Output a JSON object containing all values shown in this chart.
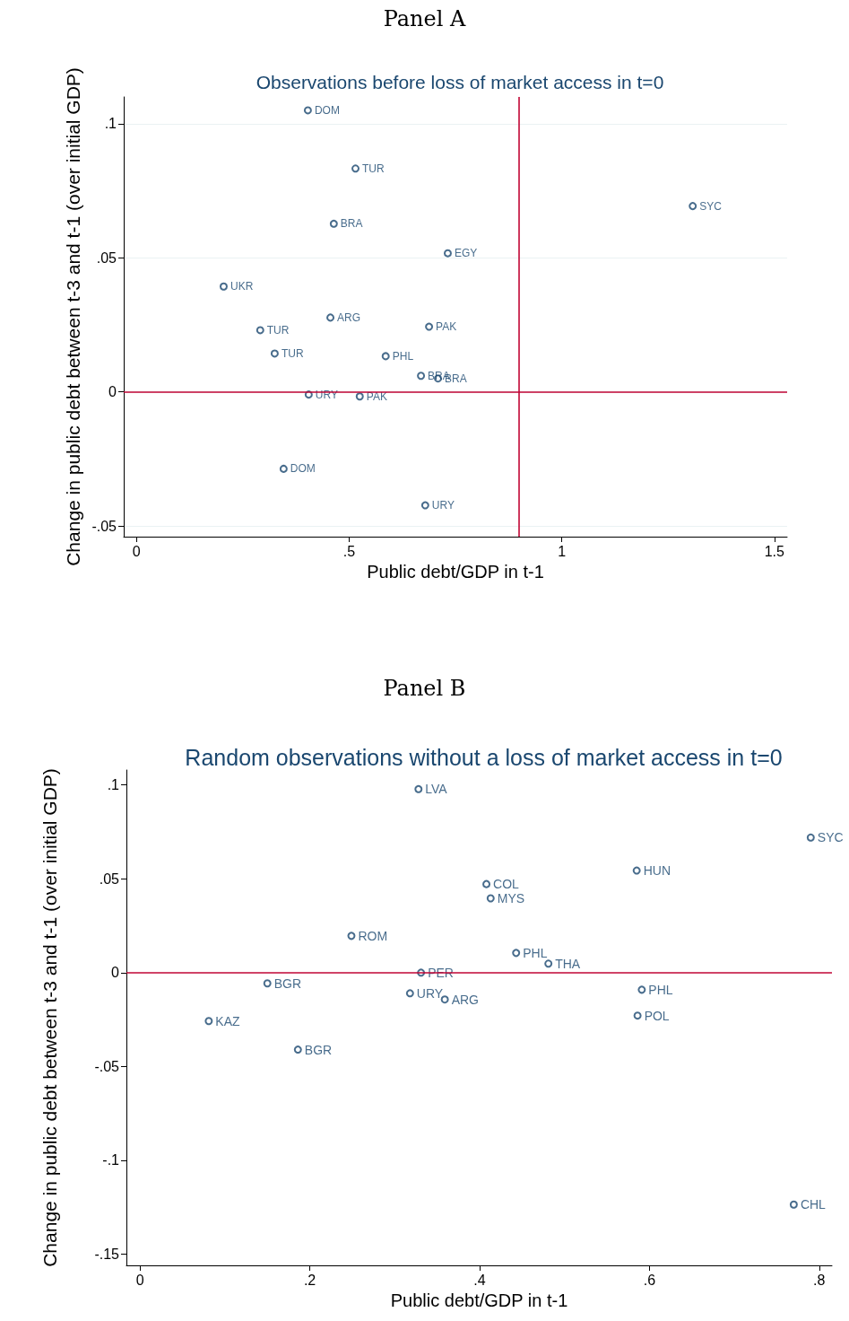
{
  "chart_data": [
    {
      "type": "scatter",
      "title": "Panel A",
      "subtitle": "Observations before loss of market access in t=0",
      "xlabel": "Public debt/GDP in t-1",
      "ylabel": "Change in public debt between t-3 and t-1 (over initial GDP)",
      "x": [
        0.403,
        0.515,
        1.308,
        0.464,
        0.732,
        0.205,
        0.456,
        0.291,
        0.688,
        0.325,
        0.586,
        0.669,
        0.709,
        0.405,
        0.525,
        0.346,
        0.679
      ],
      "series": [
        {
          "color": "#1a476f",
          "values": [
            0.105,
            0.0833,
            0.0693,
            0.0627,
            0.0517,
            0.0393,
            0.0277,
            0.023,
            0.0243,
            0.0143,
            0.0133,
            0.006,
            0.005,
            -0.001,
            -0.0017,
            -0.0287,
            -0.0423
          ],
          "value_labels": [
            "DOM",
            "TUR",
            "SYC",
            "BRA",
            "EGY",
            "UKR",
            "ARG",
            "TUR",
            "PAK",
            "TUR",
            "PHL",
            "BRA",
            "BRA",
            "URY",
            "PAK",
            "DOM",
            "URY"
          ]
        }
      ],
      "xlim": [
        -0.03,
        1.53
      ],
      "xticks": [
        0,
        {
          "value": 0.5,
          "label": ".5"
        },
        1,
        1.5
      ],
      "ylim": [
        -0.054,
        0.11
      ],
      "yticks": [
        {
          "value": -0.05,
          "label": "-.05"
        },
        0,
        {
          "value": 0.05,
          "label": ".05"
        },
        {
          "value": 0.1,
          "label": ".1"
        }
      ],
      "ref_lines": [
        {
          "axis": "x",
          "value": 0.9,
          "label": null,
          "color": "#c10534"
        },
        {
          "axis": "y",
          "value": 0,
          "label": null,
          "color": "#c10534"
        }
      ],
      "grid": "y",
      "marker": "circle"
    },
    {
      "type": "scatter",
      "title": "Panel B",
      "subtitle": "Random observations without a loss of market access in t=0",
      "xlabel": "Public debt/GDP in t-1",
      "ylabel": "Change in public debt between t-3 and t-1 (over initial GDP)",
      "x": [
        0.328,
        0.79,
        0.585,
        0.408,
        0.413,
        0.249,
        0.443,
        0.481,
        0.331,
        0.15,
        0.318,
        0.359,
        0.591,
        0.081,
        0.586,
        0.186,
        0.77
      ],
      "series": [
        {
          "color": "#1a476f",
          "values": [
            0.0978,
            0.072,
            0.0544,
            0.0472,
            0.0396,
            0.0196,
            0.0105,
            0.0048,
            0.0,
            -0.0057,
            -0.011,
            -0.0143,
            -0.0091,
            -0.0258,
            -0.0229,
            -0.041,
            -0.1236
          ],
          "value_labels": [
            "LVA",
            "SYC",
            "HUN",
            "COL",
            "MYS",
            "ROM",
            "PHL",
            "THA",
            "PER",
            "BGR",
            "URY",
            "ARG",
            "PHL",
            "KAZ",
            "POL",
            "BGR",
            "CHL"
          ]
        }
      ],
      "xlim": [
        -0.016,
        0.815
      ],
      "xticks": [
        0,
        {
          "value": 0.2,
          "label": ".2"
        },
        {
          "value": 0.4,
          "label": ".4"
        },
        {
          "value": 0.6,
          "label": ".6"
        },
        {
          "value": 0.8,
          "label": ".8"
        }
      ],
      "ylim": [
        -0.156,
        0.108
      ],
      "yticks": [
        {
          "value": -0.15,
          "label": "-.15"
        },
        {
          "value": -0.1,
          "label": "-.1"
        },
        {
          "value": -0.05,
          "label": "-.05"
        },
        0,
        {
          "value": 0.05,
          "label": ".05"
        },
        {
          "value": 0.1,
          "label": ".1"
        }
      ],
      "ref_lines": [
        {
          "axis": "y",
          "value": 0,
          "label": null,
          "color": "#c10534"
        }
      ],
      "grid": false,
      "marker": "circle"
    }
  ]
}
